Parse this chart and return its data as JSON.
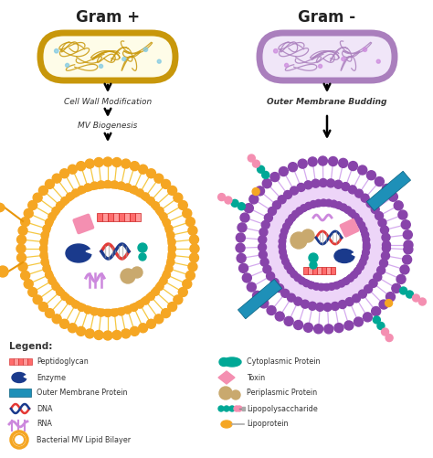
{
  "title_left": "Gram +",
  "title_right": "Gram -",
  "arrow_text_left1": "Cell Wall Modification",
  "arrow_text_left2": "MV Biogenesis",
  "arrow_text_right": "Outer Membrane Budding",
  "legend_title": "Legend:",
  "colors": {
    "gram_pos_outer": "#C8970A",
    "gram_pos_fill": "#FEFCE8",
    "gram_neg_outer": "#AA7FBD",
    "gram_neg_fill": "#F0E6F8",
    "orange": "#F5A623",
    "orange_dark": "#E8960A",
    "purple": "#8844AA",
    "purple_light": "#D4AAEE",
    "teal": "#00A896",
    "pink": "#F48FB1",
    "blue_dark": "#1A3A8C",
    "blue_mid": "#1E7FC3",
    "tan": "#C9A96E",
    "red": "#E53935",
    "light_purple": "#CC88DD",
    "background": "#FFFFFF",
    "text": "#333333",
    "lipid_tail": "#F5C842"
  }
}
